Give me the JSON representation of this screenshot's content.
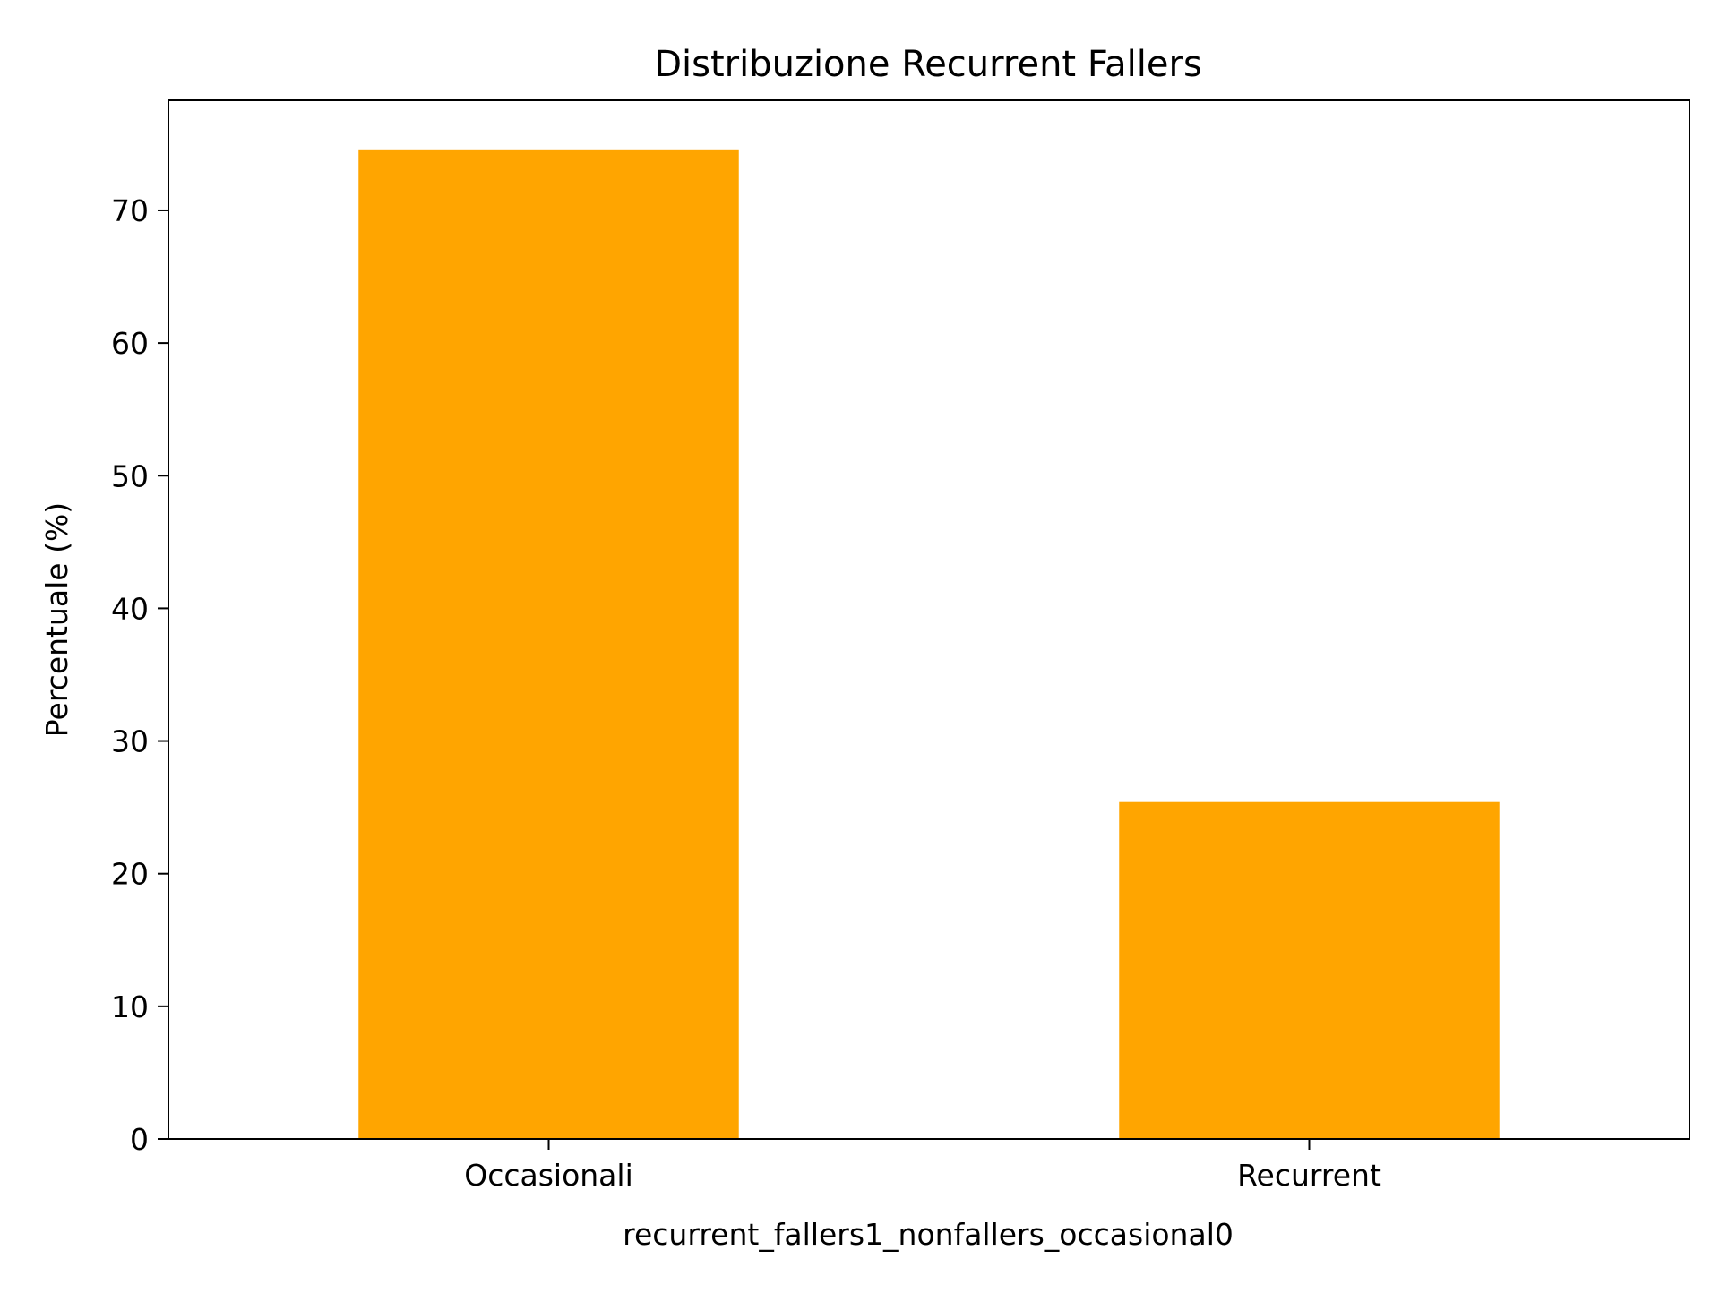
{
  "chart_data": {
    "type": "bar",
    "title": "Distribuzione Recurrent Fallers",
    "xlabel": "recurrent_fallers1_nonfallers_occasional0",
    "ylabel": "Percentuale (%)",
    "categories": [
      "Occasionali",
      "Recurrent"
    ],
    "values": [
      74.6,
      25.4
    ],
    "ylim": [
      0,
      78.3
    ],
    "yticks": [
      0,
      10,
      20,
      30,
      40,
      50,
      60,
      70
    ],
    "bar_color": "#FFA500",
    "grid": false,
    "legend": "none"
  }
}
